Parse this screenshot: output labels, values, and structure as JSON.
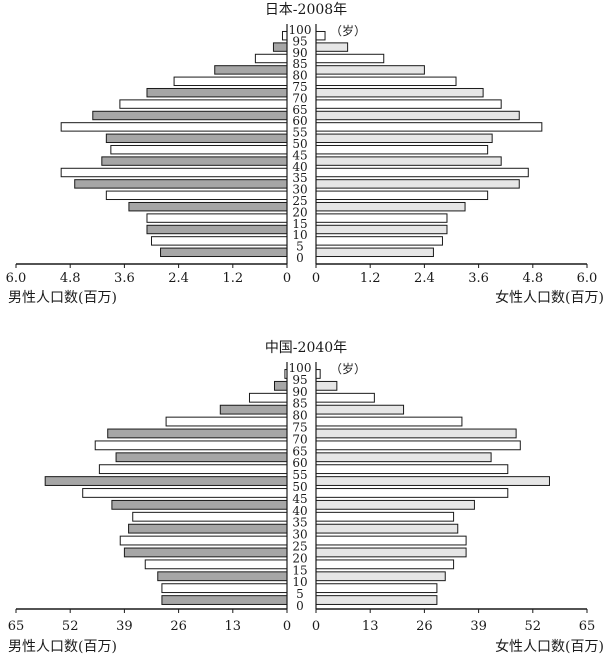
{
  "chart_data": [
    {
      "type": "bar",
      "title": "日本-2008年",
      "unit_label": "（岁）",
      "male_label": "男性人口数(百万)",
      "female_label": "女性人口数(百万)",
      "x_max": 6.0,
      "male_ticks": [
        "6.0",
        "4.8",
        "3.6",
        "2.4",
        "1.2",
        "0"
      ],
      "female_ticks": [
        "0",
        "1.2",
        "2.4",
        "3.6",
        "4.8",
        "6.0"
      ],
      "age_labels": [
        "100",
        "95",
        "90",
        "85",
        "80",
        "75",
        "70",
        "65",
        "60",
        "55",
        "50",
        "45",
        "40",
        "35",
        "30",
        "25",
        "20",
        "15",
        "10",
        "5",
        "0"
      ],
      "age_groups": [
        "95",
        "90",
        "85",
        "80",
        "75",
        "70",
        "65",
        "60",
        "55",
        "50",
        "45",
        "40",
        "35",
        "30",
        "25",
        "20",
        "15",
        "10",
        "5",
        "0"
      ],
      "series": [
        {
          "name": "男性人口数(百万)",
          "values": [
            0.1,
            0.3,
            0.7,
            1.6,
            2.5,
            3.1,
            3.7,
            4.3,
            5.0,
            4.0,
            3.9,
            4.1,
            5.0,
            4.7,
            4.0,
            3.5,
            3.1,
            3.1,
            3.0,
            2.8
          ]
        },
        {
          "name": "女性人口数(百万)",
          "values": [
            0.2,
            0.7,
            1.5,
            2.4,
            3.1,
            3.7,
            4.1,
            4.5,
            5.0,
            3.9,
            3.8,
            4.1,
            4.7,
            4.5,
            3.8,
            3.3,
            2.9,
            2.9,
            2.8,
            2.6
          ]
        }
      ]
    },
    {
      "type": "bar",
      "title": "中国-2040年",
      "unit_label": "（岁）",
      "male_label": "男性人口数(百万)",
      "female_label": "女性人口数(百万)",
      "x_max": 65,
      "male_ticks": [
        "65",
        "52",
        "39",
        "26",
        "13",
        "0"
      ],
      "female_ticks": [
        "0",
        "13",
        "26",
        "39",
        "52",
        "65"
      ],
      "age_labels": [
        "100",
        "95",
        "90",
        "85",
        "80",
        "75",
        "70",
        "65",
        "60",
        "55",
        "50",
        "45",
        "40",
        "35",
        "30",
        "25",
        "20",
        "15",
        "10",
        "5",
        "0"
      ],
      "age_groups": [
        "95",
        "90",
        "85",
        "80",
        "75",
        "70",
        "65",
        "60",
        "55",
        "50",
        "45",
        "40",
        "35",
        "30",
        "25",
        "20",
        "15",
        "10",
        "5",
        "0"
      ],
      "series": [
        {
          "name": "男性人口数(百万)",
          "values": [
            0.5,
            3,
            9,
            16,
            29,
            43,
            46,
            41,
            45,
            58,
            49,
            42,
            37,
            38,
            40,
            39,
            34,
            31,
            30,
            30
          ]
        },
        {
          "name": "女性人口数(百万)",
          "values": [
            1,
            5,
            14,
            21,
            35,
            48,
            49,
            42,
            46,
            56,
            46,
            38,
            33,
            34,
            36,
            36,
            33,
            31,
            29,
            29
          ]
        }
      ]
    }
  ]
}
